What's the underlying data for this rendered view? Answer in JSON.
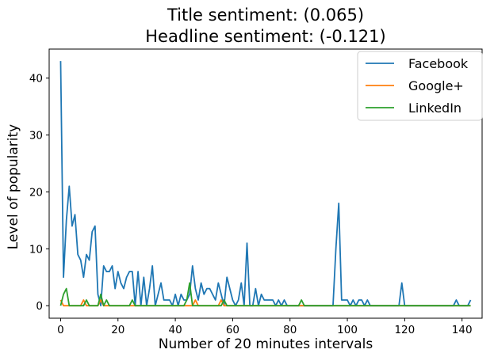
{
  "chart_data": {
    "type": "line",
    "title_line1": "Title sentiment: (0.065)",
    "title_line2": "Headline sentiment: (-0.121)",
    "xlabel": "Number of 20 minutes intervals",
    "ylabel": "Level of popularity",
    "xlim": [
      -4,
      147
    ],
    "ylim": [
      -2.2,
      45.1
    ],
    "xticks": [
      0,
      20,
      40,
      60,
      80,
      100,
      120,
      140
    ],
    "yticks": [
      0,
      10,
      20,
      30,
      40
    ],
    "grid": false,
    "legend_position": "top-right",
    "colors": {
      "Facebook": "#1f77b4",
      "Google+": "#ff7f0e",
      "LinkedIn": "#2ca02c"
    },
    "series": [
      {
        "name": "Facebook",
        "x": [
          0,
          1,
          2,
          3,
          4,
          5,
          6,
          7,
          8,
          9,
          10,
          11,
          12,
          13,
          14,
          15,
          16,
          17,
          18,
          19,
          20,
          21,
          22,
          23,
          24,
          25,
          26,
          27,
          28,
          29,
          30,
          31,
          32,
          33,
          34,
          35,
          36,
          37,
          38,
          39,
          40,
          41,
          42,
          43,
          44,
          45,
          46,
          47,
          48,
          49,
          50,
          51,
          52,
          53,
          54,
          55,
          56,
          57,
          58,
          59,
          60,
          61,
          62,
          63,
          64,
          65,
          66,
          67,
          68,
          69,
          70,
          71,
          72,
          73,
          74,
          75,
          76,
          77,
          78,
          79,
          80,
          81,
          82,
          83,
          84,
          85,
          86,
          87,
          88,
          89,
          90,
          91,
          92,
          93,
          94,
          95,
          96,
          97,
          98,
          99,
          100,
          101,
          102,
          103,
          104,
          105,
          106,
          107,
          108,
          109,
          110,
          111,
          112,
          113,
          114,
          115,
          116,
          117,
          118,
          119,
          120,
          121,
          122,
          123,
          124,
          125,
          126,
          127,
          128,
          129,
          130,
          131,
          132,
          133,
          134,
          135,
          136,
          137,
          138,
          139,
          140,
          141,
          142,
          143
        ],
        "values": [
          43,
          5,
          15,
          21,
          14,
          16,
          9,
          8,
          5,
          9,
          8,
          13,
          14,
          2,
          0,
          7,
          6,
          6,
          7,
          3,
          6,
          4,
          3,
          5,
          6,
          6,
          0,
          6,
          0,
          5,
          0,
          3,
          7,
          0,
          2,
          4,
          1,
          1,
          1,
          0,
          2,
          0,
          2,
          1,
          1,
          2,
          7,
          3,
          1,
          4,
          2,
          3,
          3,
          2,
          1,
          4,
          2,
          0,
          5,
          3,
          1,
          0,
          1,
          4,
          0,
          11,
          0,
          0,
          3,
          0,
          2,
          1,
          1,
          1,
          1,
          0,
          1,
          0,
          1,
          0,
          0,
          0,
          0,
          0,
          0,
          0,
          0,
          0,
          0,
          0,
          0,
          0,
          0,
          0,
          0,
          0,
          10,
          18,
          1,
          1,
          1,
          0,
          1,
          0,
          1,
          1,
          0,
          1,
          0,
          0,
          0,
          0,
          0,
          0,
          0,
          0,
          0,
          0,
          0,
          4,
          0,
          0,
          0,
          0,
          0,
          0,
          0,
          0,
          0,
          0,
          0,
          0,
          0,
          0,
          0,
          0,
          0,
          0,
          1,
          0,
          0,
          0,
          0,
          1
        ]
      },
      {
        "name": "Google+",
        "x": [
          0,
          1,
          2,
          3,
          4,
          5,
          6,
          7,
          8,
          9,
          10,
          11,
          12,
          13,
          14,
          15,
          16,
          17,
          18,
          19,
          20,
          21,
          22,
          23,
          24,
          25,
          26,
          27,
          28,
          29,
          30,
          31,
          32,
          33,
          34,
          35,
          36,
          37,
          38,
          39,
          40,
          41,
          42,
          43,
          44,
          45,
          46,
          47,
          48,
          49,
          50,
          51,
          52,
          53,
          54,
          55,
          56,
          57,
          58,
          59,
          60,
          61,
          62,
          63,
          64,
          65,
          66,
          67,
          68,
          69,
          70,
          71,
          72,
          73,
          74,
          75,
          76,
          77,
          78,
          79,
          80,
          81,
          82,
          83,
          84,
          85,
          86,
          87,
          88,
          89,
          90,
          91,
          92,
          93,
          94,
          95,
          96,
          97,
          98,
          99,
          100,
          101,
          102,
          103,
          104,
          105,
          106,
          107,
          108,
          109,
          110,
          111,
          112,
          113,
          114,
          115,
          116,
          117,
          118,
          119,
          120,
          121,
          122,
          123,
          124,
          125,
          126,
          127,
          128,
          129,
          130,
          131,
          132,
          133,
          134,
          135,
          136,
          137,
          138,
          139,
          140,
          141,
          142,
          143
        ],
        "values": [
          1,
          0,
          0,
          0,
          0,
          0,
          0,
          0,
          1,
          0,
          0,
          0,
          0,
          0,
          1,
          0,
          0,
          0,
          0,
          0,
          0,
          0,
          0,
          0,
          0,
          0,
          0,
          0,
          0,
          0,
          0,
          0,
          0,
          0,
          0,
          0,
          0,
          0,
          0,
          0,
          0,
          0,
          0,
          0,
          0,
          0,
          0,
          1,
          0,
          0,
          0,
          0,
          0,
          0,
          0,
          0,
          1,
          0,
          0,
          0,
          0,
          0,
          0,
          0,
          0,
          0,
          0,
          0,
          0,
          0,
          0,
          0,
          0,
          0,
          0,
          0,
          0,
          0,
          0,
          0,
          0,
          0,
          0,
          0,
          0,
          0,
          0,
          0,
          0,
          0,
          0,
          0,
          0,
          0,
          0,
          0,
          0,
          0,
          0,
          0,
          0,
          0,
          0,
          0,
          0,
          0,
          0,
          0,
          0,
          0,
          0,
          0,
          0,
          0,
          0,
          0,
          0,
          0,
          0,
          0,
          0,
          0,
          0,
          0,
          0,
          0,
          0,
          0,
          0,
          0,
          0,
          0,
          0,
          0,
          0,
          0,
          0,
          0,
          0,
          0,
          0,
          0,
          0,
          0
        ]
      },
      {
        "name": "LinkedIn",
        "x": [
          0,
          1,
          2,
          3,
          4,
          5,
          6,
          7,
          8,
          9,
          10,
          11,
          12,
          13,
          14,
          15,
          16,
          17,
          18,
          19,
          20,
          21,
          22,
          23,
          24,
          25,
          26,
          27,
          28,
          29,
          30,
          31,
          32,
          33,
          34,
          35,
          36,
          37,
          38,
          39,
          40,
          41,
          42,
          43,
          44,
          45,
          46,
          47,
          48,
          49,
          50,
          51,
          52,
          53,
          54,
          55,
          56,
          57,
          58,
          59,
          60,
          61,
          62,
          63,
          64,
          65,
          66,
          67,
          68,
          69,
          70,
          71,
          72,
          73,
          74,
          75,
          76,
          77,
          78,
          79,
          80,
          81,
          82,
          83,
          84,
          85,
          86,
          87,
          88,
          89,
          90,
          91,
          92,
          93,
          94,
          95,
          96,
          97,
          98,
          99,
          100,
          101,
          102,
          103,
          104,
          105,
          106,
          107,
          108,
          109,
          110,
          111,
          112,
          113,
          114,
          115,
          116,
          117,
          118,
          119,
          120,
          121,
          122,
          123,
          124,
          125,
          126,
          127,
          128,
          129,
          130,
          131,
          132,
          133,
          134,
          135,
          136,
          137,
          138,
          139,
          140,
          141,
          142,
          143
        ],
        "values": [
          0,
          2,
          3,
          0,
          0,
          0,
          0,
          0,
          0,
          1,
          0,
          0,
          0,
          0,
          2,
          0,
          1,
          0,
          0,
          0,
          0,
          0,
          0,
          0,
          0,
          1,
          0,
          0,
          0,
          0,
          0,
          0,
          0,
          0,
          0,
          0,
          0,
          0,
          0,
          0,
          0,
          0,
          0,
          0,
          1,
          4,
          0,
          0,
          0,
          0,
          0,
          0,
          0,
          0,
          0,
          0,
          0,
          1,
          0,
          0,
          0,
          0,
          0,
          0,
          0,
          0,
          0,
          0,
          0,
          0,
          0,
          0,
          0,
          0,
          0,
          0,
          0,
          0,
          0,
          0,
          0,
          0,
          0,
          0,
          1,
          0,
          0,
          0,
          0,
          0,
          0,
          0,
          0,
          0,
          0,
          0,
          0,
          0,
          0,
          0,
          0,
          0,
          0,
          0,
          0,
          0,
          0,
          0,
          0,
          0,
          0,
          0,
          0,
          0,
          0,
          0,
          0,
          0,
          0,
          0,
          0,
          0,
          0,
          0,
          0,
          0,
          0,
          0,
          0,
          0,
          0,
          0,
          0,
          0,
          0,
          0,
          0,
          0,
          0,
          0,
          0,
          0,
          0,
          0
        ]
      }
    ]
  }
}
